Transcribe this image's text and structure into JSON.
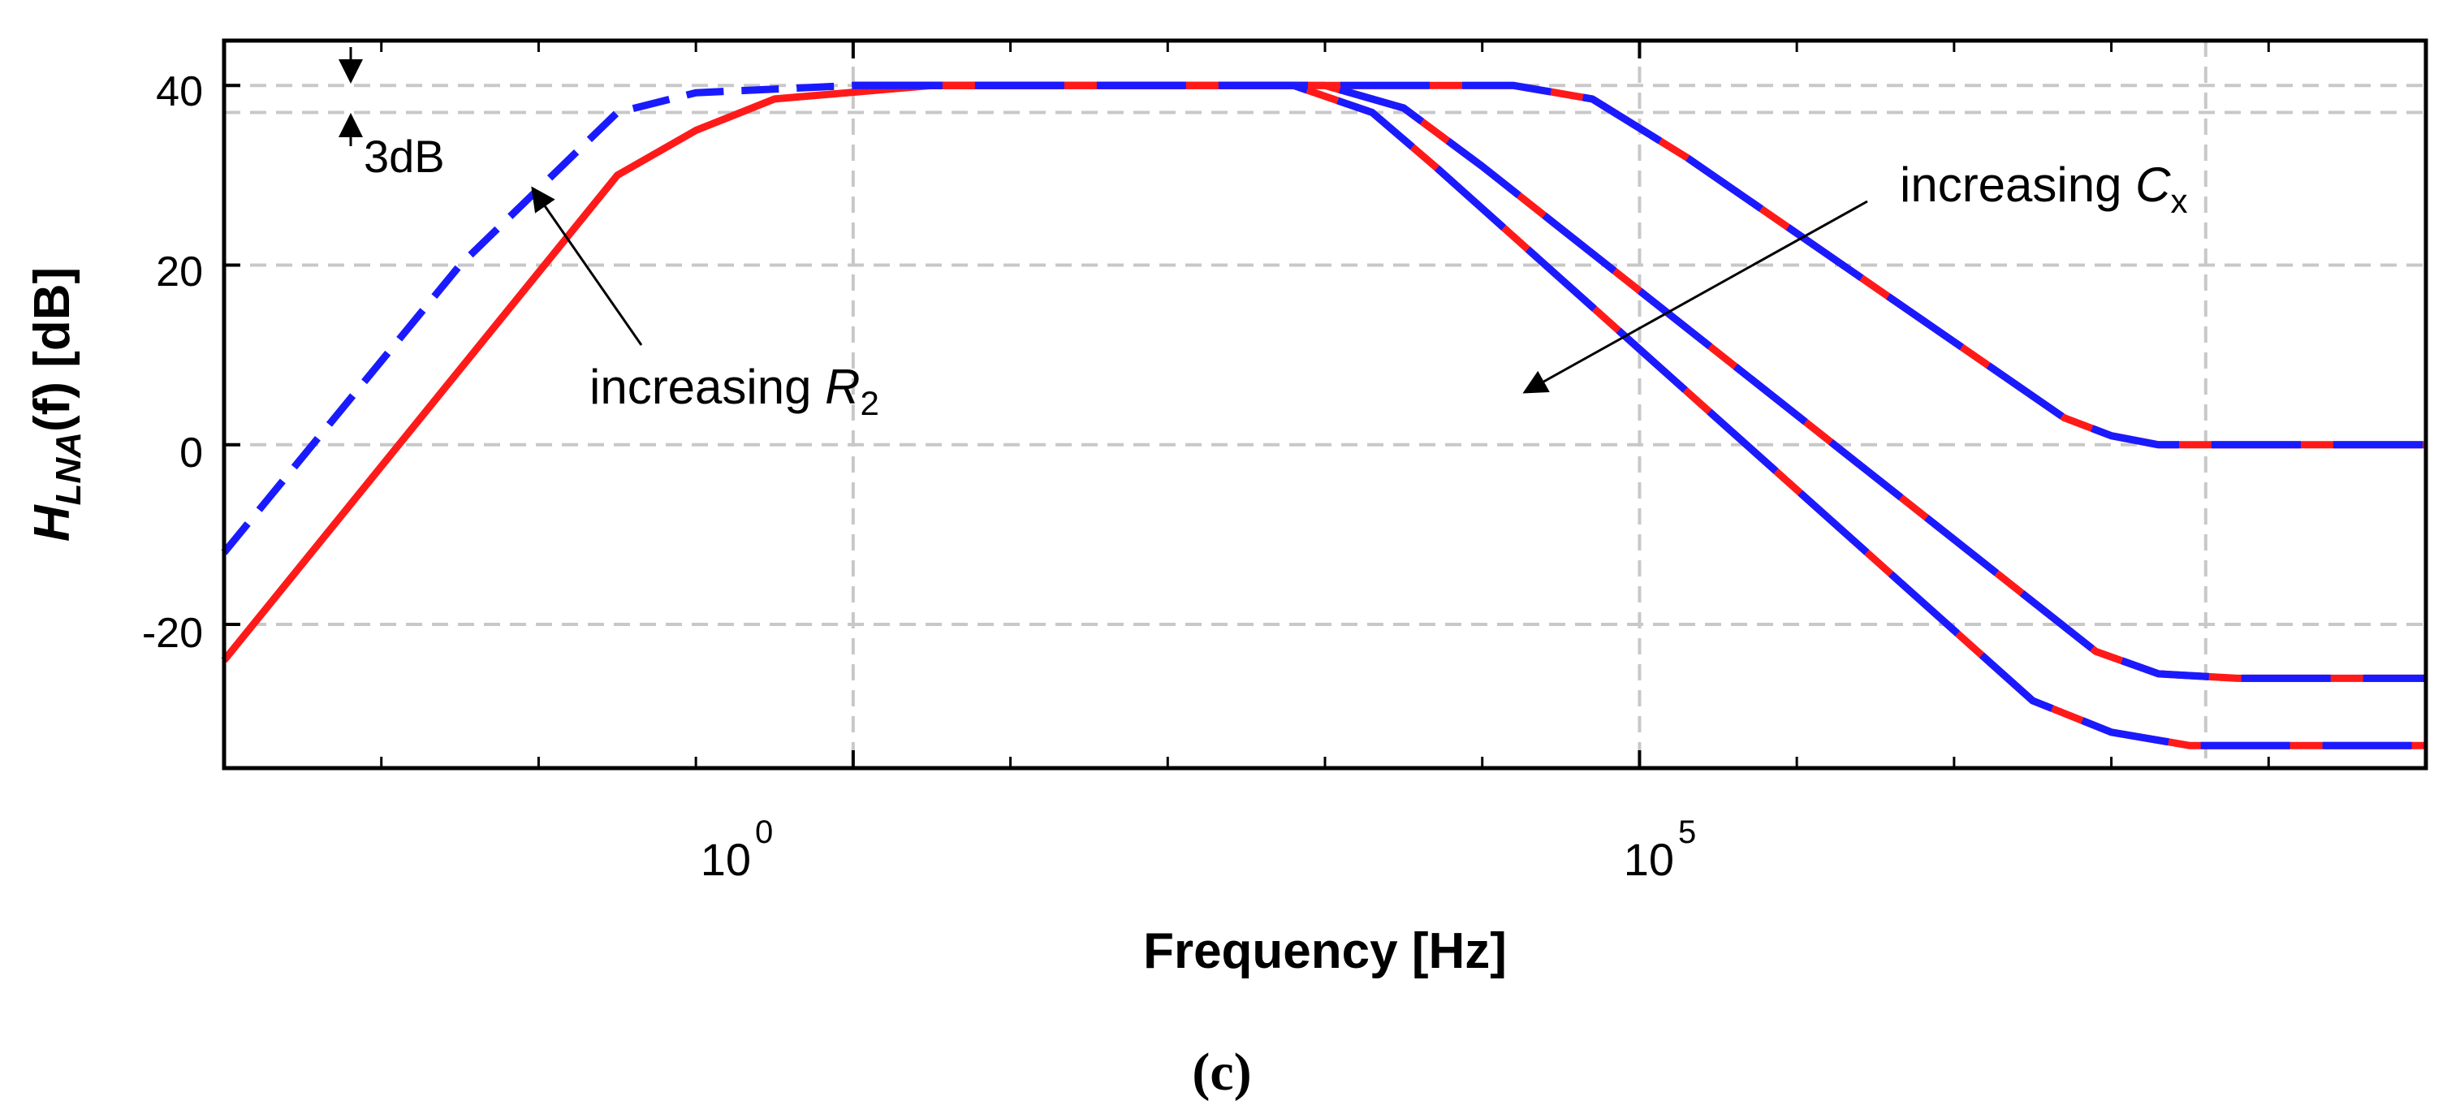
{
  "chart_data": {
    "type": "line",
    "title": "",
    "subfigure_label": "(c)",
    "xlabel": "Frequency [Hz]",
    "ylabel": {
      "main": "H",
      "subscript": "LNA",
      "arg": "(f)",
      "unit": " [dB]"
    },
    "xscale": "log",
    "xlim": [
      0.0001,
      10000000000
    ],
    "ylim": [
      -36,
      45
    ],
    "x_major_ticks": [
      {
        "value": 1,
        "base": "10",
        "exp": "0"
      },
      {
        "value": 100000,
        "base": "10",
        "exp": "5"
      }
    ],
    "x_minor_ticks_log10": [
      -3,
      -2,
      -1,
      1,
      2,
      3,
      4,
      6,
      7,
      8,
      9
    ],
    "y_ticks": [
      {
        "value": 40,
        "label": "40"
      },
      {
        "value": 20,
        "label": "20"
      },
      {
        "value": 0,
        "label": "0"
      },
      {
        "value": -20,
        "label": "-20"
      }
    ],
    "grid": true,
    "reference_lines": {
      "h": [
        40,
        37
      ],
      "v_log10": [
        0,
        5,
        8.6
      ]
    },
    "series": [
      {
        "name": "Red solid (R2 variant)",
        "color": "#ff1a1a",
        "style": "solid",
        "points": [
          [
            -4,
            -24
          ],
          [
            -1.5,
            30
          ],
          [
            -1,
            35
          ],
          [
            -0.5,
            38.5
          ],
          [
            0.5,
            40
          ],
          [
            1,
            40
          ]
        ]
      },
      {
        "name": "Blue dashed (increased R2)",
        "color": "#1a1aff",
        "style": "dashed",
        "points": [
          [
            -4,
            -12
          ],
          [
            -2.5,
            20
          ],
          [
            -1.5,
            37
          ],
          [
            -1,
            39.2
          ],
          [
            0,
            40
          ],
          [
            1,
            40
          ]
        ]
      },
      {
        "name": "Cx small",
        "color": "#ff1a1a",
        "overlay_color": "#1a1aff",
        "style": "red-blue dashed overlay",
        "points": [
          [
            0,
            40
          ],
          [
            4.2,
            40
          ],
          [
            4.7,
            38.5
          ],
          [
            5.3,
            32
          ],
          [
            7.7,
            3
          ],
          [
            8.0,
            1
          ],
          [
            8.3,
            0
          ],
          [
            10,
            0
          ]
        ]
      },
      {
        "name": "Cx medium",
        "color": "#ff1a1a",
        "overlay_color": "#1a1aff",
        "style": "red-blue dashed overlay",
        "points": [
          [
            0,
            40
          ],
          [
            3.0,
            40
          ],
          [
            3.5,
            37.5
          ],
          [
            4.0,
            31
          ],
          [
            7.9,
            -23
          ],
          [
            8.3,
            -25.5
          ],
          [
            8.8,
            -26
          ],
          [
            10,
            -26
          ]
        ]
      },
      {
        "name": "Cx large",
        "color": "#ff1a1a",
        "overlay_color": "#1a1aff",
        "style": "red-blue dashed overlay",
        "points": [
          [
            0,
            40
          ],
          [
            2.8,
            40
          ],
          [
            3.3,
            37
          ],
          [
            3.7,
            31
          ],
          [
            7.5,
            -28.5
          ],
          [
            8.0,
            -32
          ],
          [
            8.5,
            -33.5
          ],
          [
            10,
            -33.5
          ]
        ]
      }
    ],
    "annotations": {
      "db3": {
        "label": "3dB"
      },
      "r2": {
        "prefix": "increasing ",
        "var": "R",
        "sub": "2"
      },
      "cx": {
        "prefix": "increasing ",
        "var": "C",
        "sub": "x"
      }
    }
  }
}
